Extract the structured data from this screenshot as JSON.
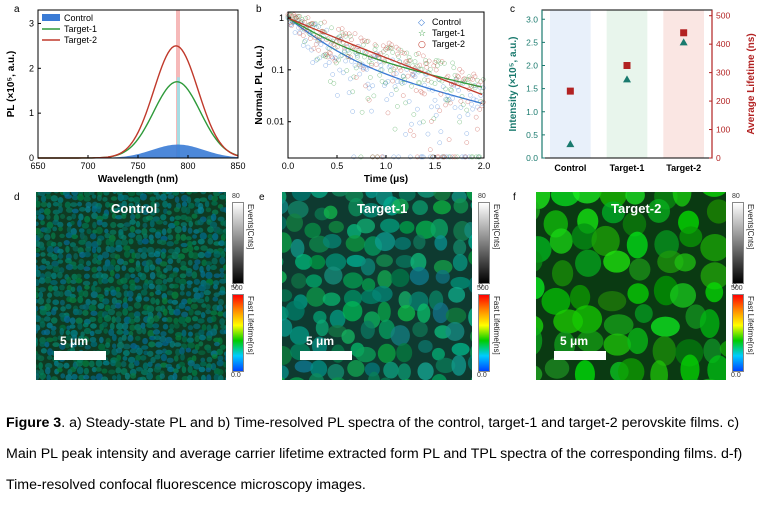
{
  "panels": {
    "a": "a",
    "b": "b",
    "c": "c",
    "d": "d",
    "e": "e",
    "f": "f"
  },
  "colors": {
    "control": "#3a7bd5",
    "target1": "#2e9a3a",
    "target2": "#c0392b",
    "axis_c_left": "#1a7a6e",
    "axis_c_right": "#b22222"
  },
  "chart_data": [
    {
      "type": "line",
      "panel": "a",
      "xlabel": "Wavelength (nm)",
      "ylabel": "PL (×10⁵, a.u.)",
      "xlim": [
        650,
        850
      ],
      "ylim": [
        0,
        3.3
      ],
      "xticks": [
        "650",
        "700",
        "750",
        "800",
        "850"
      ],
      "yticks": [
        "0",
        "1",
        "2",
        "3"
      ],
      "legend": "top-left",
      "series": [
        {
          "name": "Control",
          "peak_nm": 790,
          "peak": 0.3,
          "fwhm": 60,
          "style": "filled"
        },
        {
          "name": "Target-1",
          "peak_nm": 789,
          "peak": 1.7,
          "fwhm": 55,
          "style": "line"
        },
        {
          "name": "Target-2",
          "peak_nm": 788,
          "peak": 2.5,
          "fwhm": 52,
          "style": "line"
        }
      ],
      "highlight_nm": 790
    },
    {
      "type": "scatter",
      "panel": "b",
      "xlabel": "Time (μs)",
      "ylabel": "Normal. PL (a.u.)",
      "xlim": [
        0,
        2.0
      ],
      "ylim": [
        0.002,
        1.3
      ],
      "yscale": "log",
      "xticks": [
        "0.0",
        "0.5",
        "1.0",
        "1.5",
        "2.0"
      ],
      "yticks": [
        "0.01",
        "0.1",
        "1"
      ],
      "legend": "top-right",
      "series": [
        {
          "name": "Control",
          "tau": 0.26,
          "tau2": 0.9,
          "a1": 0.8
        },
        {
          "name": "Target-1",
          "tau": 0.3,
          "tau2": 1.05,
          "a1": 0.7
        },
        {
          "name": "Target-2",
          "tau": 0.35,
          "tau2": 0.62,
          "a1": 0.2
        }
      ]
    },
    {
      "type": "scatter",
      "panel": "c",
      "categories": [
        "Control",
        "Target-1",
        "Target-2"
      ],
      "ylabel_left": "Intensity (×10⁵, a.u.)",
      "ylabel_right": "Average Lifetime (ns)",
      "ylim_left": [
        0,
        3.2
      ],
      "ylim_right": [
        0,
        520
      ],
      "yticks_left": [
        "0.0",
        "0.5",
        "1.0",
        "1.5",
        "2.0",
        "2.5",
        "3.0"
      ],
      "yticks_right": [
        "0",
        "100",
        "200",
        "300",
        "400",
        "500"
      ],
      "intensity": [
        0.3,
        1.7,
        2.5
      ],
      "lifetime": [
        235,
        325,
        440
      ]
    }
  ],
  "maps": [
    {
      "title": "Control",
      "scalebar": "5 μm"
    },
    {
      "title": "Target-1",
      "scalebar": "5 μm"
    },
    {
      "title": "Target-2",
      "scalebar": "5 μm"
    }
  ],
  "colorbar": {
    "events_title": "Events[Cnts]",
    "events_max": "80",
    "events_min": "0",
    "lifetime_title": "Fast Lifetime[ns]",
    "lifetime_max": "500",
    "lifetime_min": "0.0"
  },
  "caption": {
    "label": "Figure 3",
    "text": ". a) Steady-state PL and b) Time-resolved PL spectra of the control, target-1 and target-2 perovskite films. c) Main PL peak intensity and average carrier lifetime extracted form PL and TPL spectra of the corresponding films. d-f) Time-resolved confocal fluorescence microscopy images."
  }
}
